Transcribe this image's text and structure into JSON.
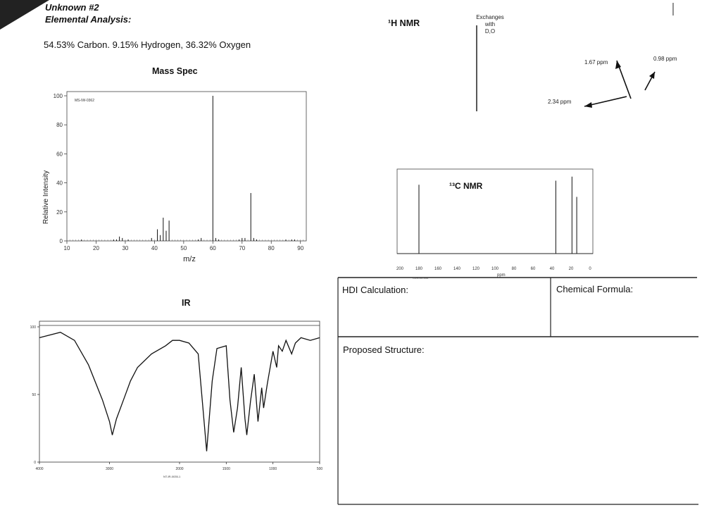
{
  "header": {
    "unknown": "Unknown #2",
    "elemental_label": "Elemental Analysis:",
    "composition": "54.53% Carbon. 9.15% Hydrogen, 36.32% Oxygen"
  },
  "mass_spec": {
    "title": "Mass Spec",
    "sample_id": "MS-IW-0362",
    "ylabel": "Relative Intensity",
    "xlabel": "m/z",
    "xticks": [
      "10",
      "20",
      "30",
      "40",
      "50",
      "60",
      "70",
      "80",
      "90"
    ],
    "yticks": [
      "0",
      "20",
      "40",
      "60",
      "80",
      "100"
    ]
  },
  "h_nmr": {
    "title": "¹H NMR",
    "exchange_note_1": "Exchanges",
    "exchange_note_2": "with",
    "exchange_note_3": "D,O",
    "peaks": [
      "1.67 ppm",
      "0.98 ppm",
      "2.34 ppm"
    ]
  },
  "c_nmr": {
    "title": "¹³C NMR",
    "xticks": [
      "200",
      "180",
      "160",
      "140",
      "120",
      "100",
      "80",
      "60",
      "40",
      "20",
      "0"
    ],
    "xlabel": "ppm",
    "sample_code": "CDS-00-344"
  },
  "ir": {
    "title": "IR",
    "yticks": [
      "100",
      "50",
      "0"
    ],
    "xticks": [
      "4000",
      "3000",
      "2000",
      "1500",
      "1000",
      "500"
    ],
    "footer_code": "NT-IR-0035-1"
  },
  "boxes": {
    "hdi": "HDI Calculation:",
    "formula": "Chemical Formula:",
    "structure": "Proposed Structure:"
  },
  "chart_data": [
    {
      "type": "bar",
      "title": "Mass Spec",
      "xlabel": "m/z",
      "ylabel": "Relative Intensity",
      "xlim": [
        10,
        92
      ],
      "ylim": [
        0,
        100
      ],
      "x": [
        15,
        26,
        27,
        28,
        29,
        31,
        39,
        41,
        42,
        43,
        44,
        45,
        55,
        56,
        60,
        61,
        62,
        69,
        70,
        71,
        73,
        74,
        75,
        85,
        87,
        88
      ],
      "values": [
        1,
        1,
        1,
        3,
        2,
        1,
        2,
        8,
        4,
        16,
        7,
        14,
        1,
        2,
        100,
        2,
        1,
        1,
        2,
        2,
        33,
        2,
        1,
        1,
        1,
        1
      ]
    },
    {
      "type": "bar",
      "title": "¹³C NMR",
      "xlabel": "ppm",
      "xlim": [
        200,
        0
      ],
      "x": [
        180,
        36,
        19,
        14
      ],
      "values": [
        85,
        90,
        95,
        70
      ]
    },
    {
      "type": "line",
      "title": "IR",
      "ylim": [
        0,
        100
      ],
      "xlim": [
        4000,
        500
      ],
      "x": [
        4000,
        3700,
        3500,
        3300,
        3100,
        3000,
        2960,
        2900,
        2800,
        2700,
        2600,
        2400,
        2200,
        2100,
        2000,
        1900,
        1800,
        1750,
        1710,
        1650,
        1600,
        1500,
        1460,
        1420,
        1380,
        1340,
        1300,
        1280,
        1240,
        1200,
        1160,
        1120,
        1100,
        1060,
        1000,
        960,
        940,
        900,
        860,
        800,
        760,
        700,
        600,
        500
      ],
      "values": [
        92,
        96,
        90,
        72,
        46,
        30,
        20,
        32,
        46,
        60,
        70,
        80,
        86,
        90,
        90,
        88,
        80,
        40,
        8,
        60,
        84,
        86,
        46,
        22,
        40,
        70,
        32,
        20,
        45,
        65,
        30,
        55,
        40,
        58,
        82,
        70,
        86,
        82,
        90,
        80,
        88,
        92,
        90,
        92
      ]
    }
  ]
}
